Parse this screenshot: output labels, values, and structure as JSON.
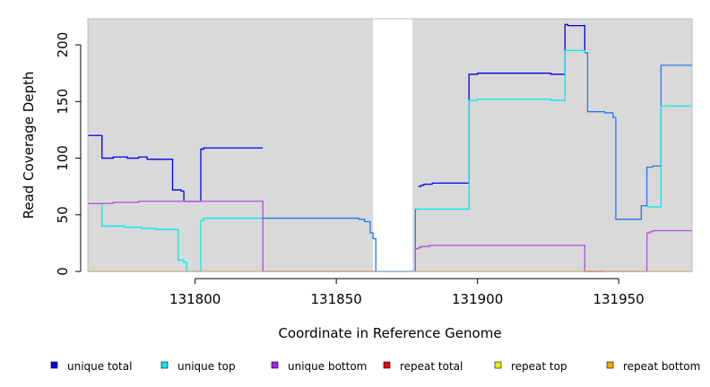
{
  "chart_data": {
    "type": "line",
    "step": true,
    "xlabel": "Coordinate in Reference Genome",
    "ylabel": "Read Coverage Depth",
    "xlim": [
      131762,
      131976
    ],
    "ylim": [
      0,
      223
    ],
    "xticks": [
      131800,
      131850,
      131900,
      131950
    ],
    "yticks": [
      0,
      50,
      100,
      150,
      200
    ],
    "grid": false,
    "background": "#d9d9d9",
    "gap_region": [
      131863,
      131877
    ],
    "legend_position": "bottom",
    "legend": [
      {
        "name": "unique total",
        "color": "#0000ee"
      },
      {
        "name": "unique top",
        "color": "#00eeee"
      },
      {
        "name": "unique bottom",
        "color": "#a020f0"
      },
      {
        "name": "repeat total",
        "color": "#ee0000"
      },
      {
        "name": "repeat top",
        "color": "#eeee00"
      },
      {
        "name": "repeat bottom",
        "color": "#ffa500"
      }
    ],
    "series": [
      {
        "name": "unique total",
        "color": "#0000ee",
        "points": [
          [
            131762,
            120
          ],
          [
            131767,
            120
          ],
          [
            131767,
            100
          ],
          [
            131771,
            100
          ],
          [
            131771,
            101
          ],
          [
            131776,
            101
          ],
          [
            131776,
            100
          ],
          [
            131780,
            100
          ],
          [
            131780,
            101
          ],
          [
            131783,
            101
          ],
          [
            131783,
            99
          ],
          [
            131792,
            99
          ],
          [
            131792,
            72
          ],
          [
            131795,
            72
          ],
          [
            131795,
            71
          ],
          [
            131796,
            71
          ],
          [
            131796,
            62
          ],
          [
            131802,
            62
          ],
          [
            131802,
            108
          ],
          [
            131803,
            108
          ],
          [
            131803,
            109
          ],
          [
            131824,
            109
          ]
        ]
      },
      {
        "name": "unique total",
        "color": "#1e7be8",
        "points": [
          [
            131824,
            47
          ],
          [
            131858,
            47
          ],
          [
            131858,
            46
          ],
          [
            131860,
            46
          ],
          [
            131860,
            44
          ],
          [
            131862,
            44
          ],
          [
            131862,
            34
          ],
          [
            131863,
            34
          ],
          [
            131863,
            29
          ],
          [
            131864,
            29
          ],
          [
            131864,
            0
          ],
          [
            131878,
            0
          ],
          [
            131878,
            55
          ],
          [
            131879,
            55
          ]
        ]
      },
      {
        "name": "unique total",
        "color": "#0000ee",
        "points": [
          [
            131879,
            75
          ],
          [
            131880,
            75
          ],
          [
            131880,
            76
          ],
          [
            131881,
            76
          ],
          [
            131881,
            77
          ],
          [
            131884,
            77
          ],
          [
            131884,
            78
          ],
          [
            131897,
            78
          ],
          [
            131897,
            174
          ],
          [
            131900,
            174
          ],
          [
            131900,
            175
          ],
          [
            131926,
            175
          ],
          [
            131926,
            174
          ],
          [
            131931,
            174
          ],
          [
            131931,
            218
          ],
          [
            131932,
            218
          ],
          [
            131932,
            217
          ],
          [
            131938,
            217
          ],
          [
            131938,
            193
          ]
        ]
      },
      {
        "name": "unique total",
        "color": "#1e7be8",
        "points": [
          [
            131938,
            193
          ],
          [
            131939,
            193
          ],
          [
            131939,
            141
          ],
          [
            131945,
            141
          ],
          [
            131945,
            140
          ],
          [
            131948,
            140
          ],
          [
            131948,
            136
          ],
          [
            131949,
            136
          ],
          [
            131949,
            46
          ],
          [
            131958,
            46
          ],
          [
            131958,
            58
          ],
          [
            131960,
            58
          ],
          [
            131960,
            92
          ],
          [
            131962,
            92
          ],
          [
            131962,
            93
          ],
          [
            131965,
            93
          ],
          [
            131965,
            182
          ],
          [
            131976,
            182
          ]
        ]
      },
      {
        "name": "unique top",
        "color": "#00eeee",
        "points": [
          [
            131762,
            60
          ],
          [
            131767,
            60
          ],
          [
            131767,
            40
          ],
          [
            131775,
            40
          ],
          [
            131775,
            39
          ],
          [
            131781,
            39
          ],
          [
            131781,
            38
          ],
          [
            131786,
            38
          ],
          [
            131786,
            37
          ],
          [
            131794,
            37
          ],
          [
            131794,
            10
          ],
          [
            131796,
            10
          ],
          [
            131796,
            8
          ],
          [
            131797,
            8
          ],
          [
            131797,
            0
          ],
          [
            131802,
            0
          ],
          [
            131802,
            45
          ],
          [
            131803,
            45
          ],
          [
            131803,
            47
          ],
          [
            131824,
            47
          ]
        ]
      },
      {
        "name": "unique top",
        "color": "#00eeee",
        "points": [
          [
            131878,
            55
          ],
          [
            131897,
            55
          ],
          [
            131897,
            151
          ],
          [
            131900,
            151
          ],
          [
            131900,
            152
          ],
          [
            131926,
            152
          ],
          [
            131926,
            151
          ],
          [
            131931,
            151
          ],
          [
            131931,
            195
          ],
          [
            131938,
            195
          ],
          [
            131938,
            193
          ]
        ]
      },
      {
        "name": "unique top",
        "color": "#00eeee",
        "points": [
          [
            131960,
            57
          ],
          [
            131965,
            57
          ],
          [
            131965,
            146
          ],
          [
            131976,
            146
          ]
        ]
      },
      {
        "name": "unique bottom",
        "color": "#b04ee0",
        "points": [
          [
            131762,
            60
          ],
          [
            131771,
            60
          ],
          [
            131771,
            61
          ],
          [
            131780,
            61
          ],
          [
            131780,
            62
          ],
          [
            131824,
            62
          ],
          [
            131824,
            0
          ],
          [
            131864,
            0
          ]
        ]
      },
      {
        "name": "unique bottom",
        "color": "#b04ee0",
        "points": [
          [
            131878,
            0
          ],
          [
            131878,
            20
          ],
          [
            131879,
            20
          ],
          [
            131879,
            21
          ],
          [
            131880,
            21
          ],
          [
            131880,
            22
          ],
          [
            131883,
            22
          ],
          [
            131883,
            23
          ],
          [
            131938,
            23
          ],
          [
            131938,
            0
          ],
          [
            131960,
            0
          ],
          [
            131960,
            34
          ],
          [
            131961,
            34
          ],
          [
            131961,
            35
          ],
          [
            131962,
            35
          ],
          [
            131962,
            36
          ],
          [
            131976,
            36
          ]
        ]
      },
      {
        "name": "repeat total",
        "color": "#ee0000",
        "points": [
          [
            131938,
            0
          ],
          [
            131945,
            0
          ]
        ]
      },
      {
        "name": "repeat bottom",
        "color": "#ffa500",
        "points": [
          [
            131762,
            0
          ],
          [
            131864,
            0
          ]
        ]
      },
      {
        "name": "repeat bottom",
        "color": "#ffa500",
        "points": [
          [
            131878,
            0
          ],
          [
            131976,
            0
          ]
        ]
      }
    ]
  }
}
